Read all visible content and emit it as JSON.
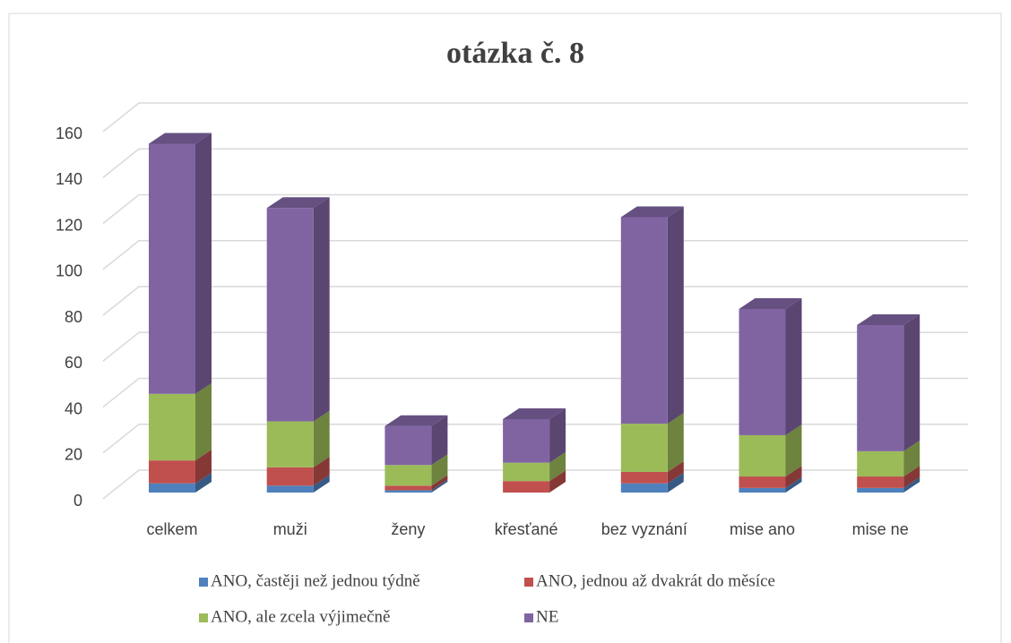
{
  "chart_data": {
    "type": "bar3d_stacked",
    "title": "otázka č. 8",
    "categories": [
      "celkem",
      "muži",
      "ženy",
      "křesťané",
      "bez vyznání",
      "mise ano",
      "mise ne"
    ],
    "series": [
      {
        "name": "ANO, častěji než jednou týdně",
        "color": "#4f81bd",
        "values": [
          4,
          3,
          1,
          0,
          4,
          2,
          2
        ]
      },
      {
        "name": "ANO, jednou až dvakrát do měsíce",
        "color": "#c0504d",
        "values": [
          10,
          8,
          2,
          5,
          5,
          5,
          5
        ]
      },
      {
        "name": "ANO, ale zcela výjimečně",
        "color": "#9bbb59",
        "values": [
          29,
          20,
          9,
          8,
          21,
          18,
          11
        ]
      },
      {
        "name": "NE",
        "color": "#8064a2",
        "values": [
          109,
          93,
          17,
          19,
          90,
          55,
          55
        ]
      }
    ],
    "ylim": [
      0,
      160
    ],
    "yticks": [
      0,
      20,
      40,
      60,
      80,
      100,
      120,
      140,
      160
    ],
    "grid": true,
    "legend": "bottom"
  }
}
